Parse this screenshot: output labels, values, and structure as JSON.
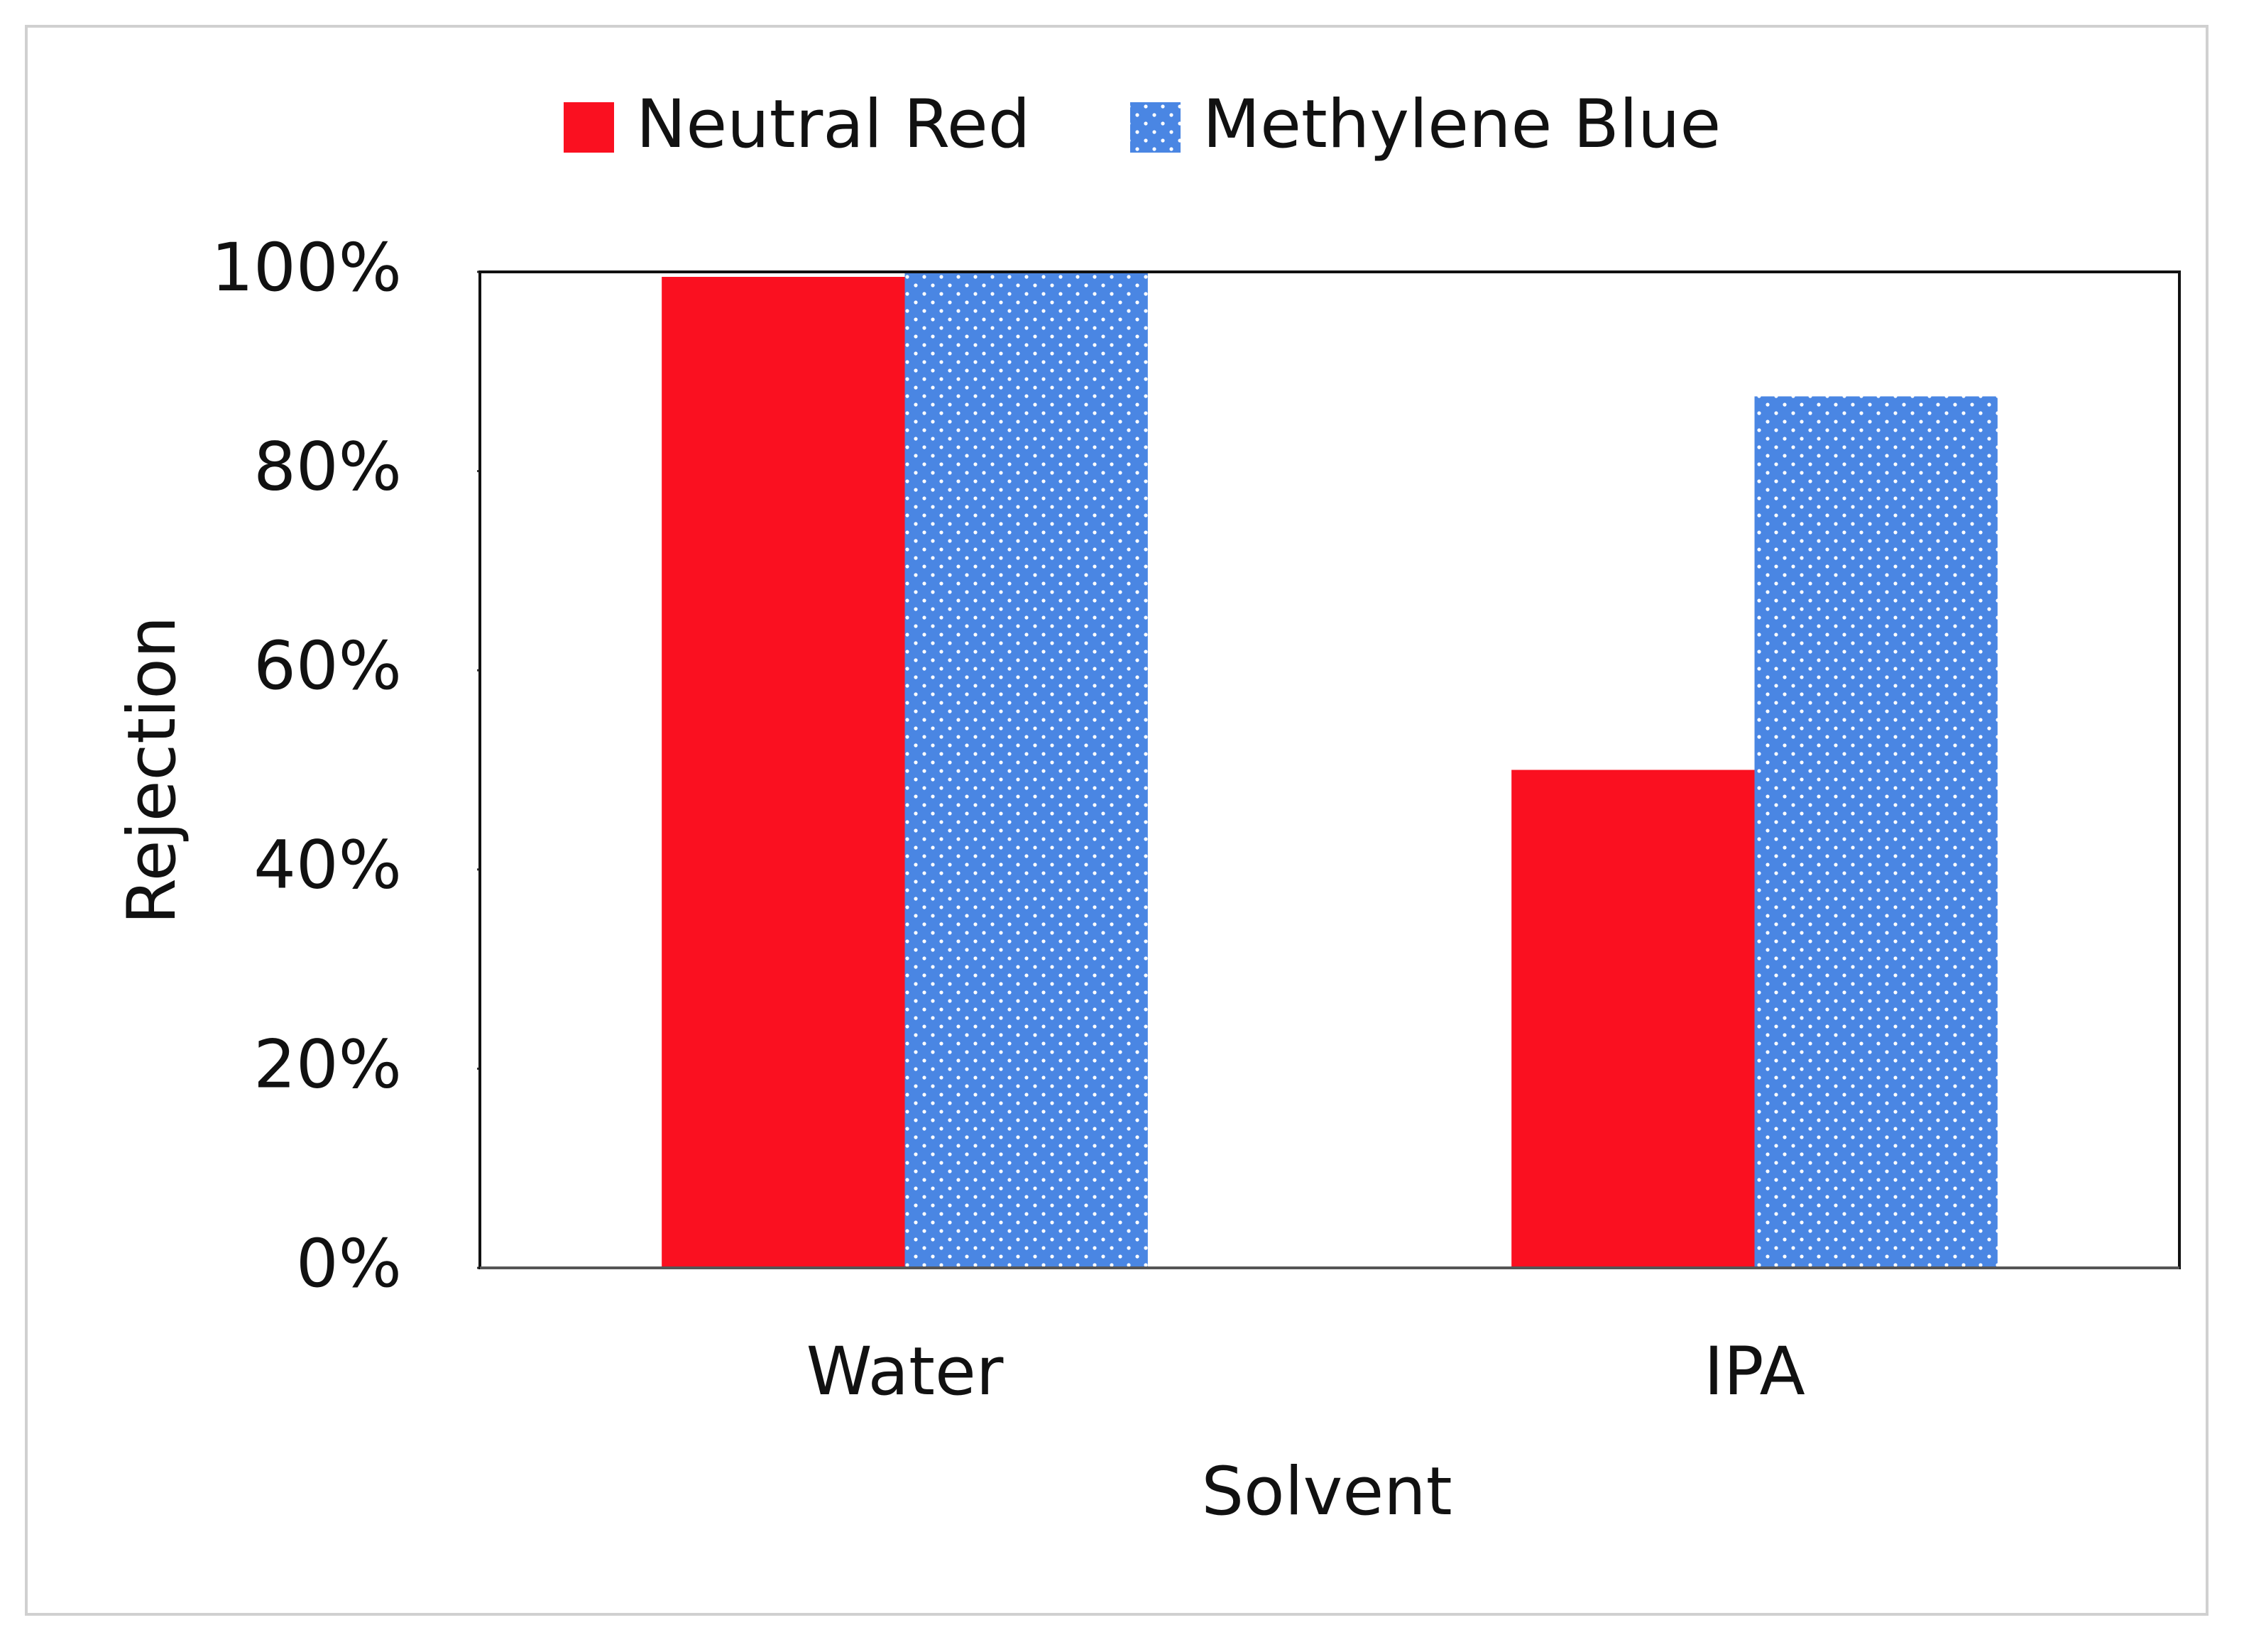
{
  "chart_data": {
    "type": "bar",
    "x_label": "Solvent",
    "y_label": "Rejection",
    "categories": [
      "Water",
      "IPA"
    ],
    "series": [
      {
        "name": "Neutral Red",
        "color": "#fa1020",
        "values": [
          99.5,
          50
        ]
      },
      {
        "name": "Methylene Blue",
        "color": "#4a86e3",
        "hatch": "dots",
        "values": [
          100,
          87.5
        ]
      }
    ],
    "ylim": [
      0,
      100
    ],
    "yticks": [
      {
        "value": 0,
        "label": "0%"
      },
      {
        "value": 20,
        "label": "20%"
      },
      {
        "value": 40,
        "label": "40%"
      },
      {
        "value": 60,
        "label": "60%"
      },
      {
        "value": 80,
        "label": "80%"
      },
      {
        "value": 100,
        "label": "100%"
      }
    ],
    "legend": "top",
    "grid": false
  }
}
